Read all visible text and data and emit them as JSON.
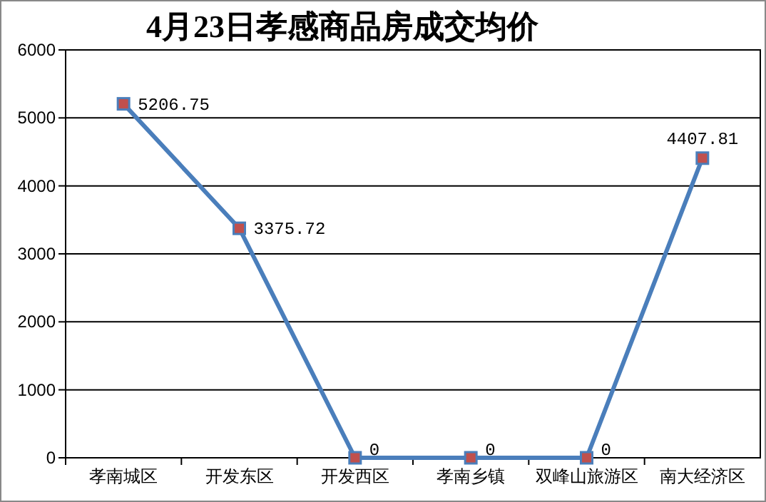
{
  "chart_data": {
    "type": "line",
    "title": "4月23日孝感商品房成交均价",
    "categories": [
      "孝南城区",
      "开发东区",
      "开发西区",
      "孝南乡镇",
      "双峰山旅游区",
      "南大经济区"
    ],
    "series": [
      {
        "color": "#4a7ebb",
        "values": [
          5206.75,
          3375.72,
          0,
          0,
          0,
          4407.81
        ]
      }
    ],
    "ylim": [
      0,
      6000
    ],
    "yticks": [
      0,
      1000,
      2000,
      3000,
      4000,
      5000,
      6000
    ],
    "grid": "y",
    "marker": "square",
    "data_labels": true
  }
}
